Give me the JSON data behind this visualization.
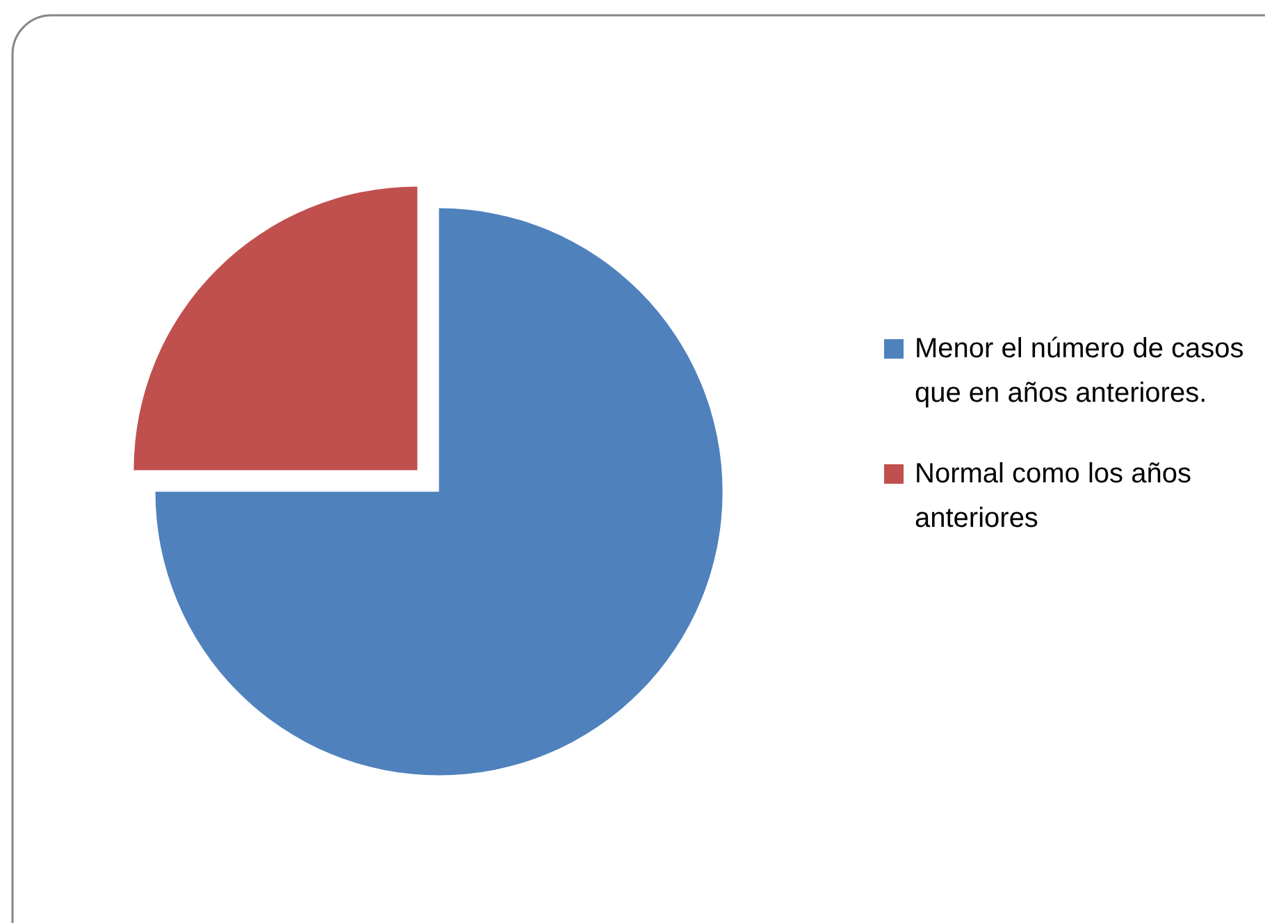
{
  "chart_data": {
    "type": "pie",
    "categories": [
      "Menor el número de casos que en años anteriores.",
      "Normal como los años anteriores"
    ],
    "values": [
      75,
      25
    ],
    "colors": [
      "#4f81bd",
      "#c0504d"
    ],
    "legend": "right"
  }
}
